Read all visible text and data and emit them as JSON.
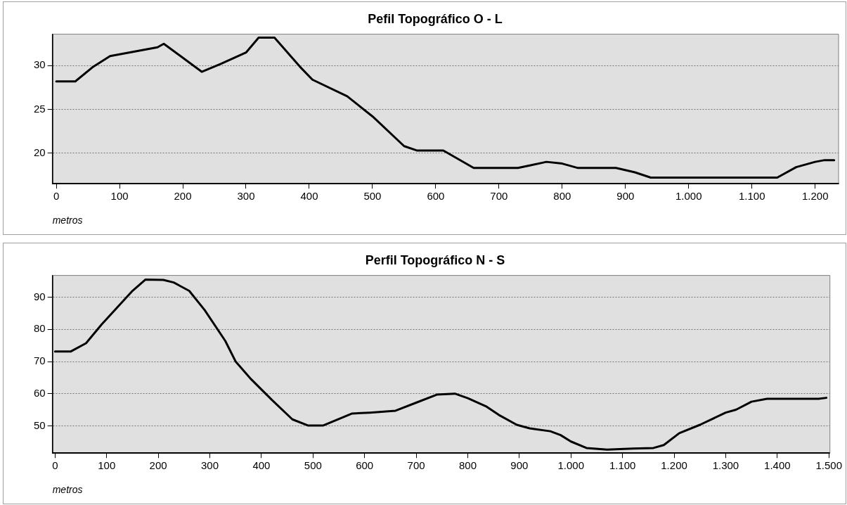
{
  "chart_data": [
    {
      "type": "line",
      "title": "Pefil Topográfico O - L",
      "xlabel": "metros",
      "grid": "y",
      "legend": false,
      "marker": "none",
      "line_style": "solid",
      "xlim": [
        -6,
        1237
      ],
      "ylim": [
        16.5,
        33.6
      ],
      "xticks": [
        0,
        100,
        200,
        300,
        400,
        500,
        600,
        700,
        800,
        900,
        {
          "value": 1000,
          "label": "1.000"
        },
        {
          "value": 1100,
          "label": "1.100"
        },
        {
          "value": 1200,
          "label": "1.200"
        }
      ],
      "yticks": [
        20,
        25,
        30
      ],
      "series": [
        {
          "color": "#000000",
          "x": [
            0,
            30,
            57,
            85,
            130,
            160,
            170,
            230,
            260,
            300,
            320,
            345,
            385,
            405,
            460,
            500,
            550,
            570,
            612,
            660,
            730,
            750,
            775,
            800,
            825,
            885,
            915,
            940,
            1140,
            1170,
            1200,
            1215,
            1230
          ],
          "values": [
            28.2,
            28.2,
            29.8,
            31.1,
            31.7,
            32.1,
            32.5,
            29.3,
            30.2,
            31.5,
            33.2,
            33.2,
            29.9,
            28.4,
            26.5,
            24.2,
            20.8,
            20.3,
            20.3,
            18.3,
            18.3,
            18.6,
            19.0,
            18.8,
            18.3,
            18.3,
            17.8,
            17.2,
            17.2,
            18.4,
            19.0,
            19.2,
            19.2
          ]
        }
      ]
    },
    {
      "type": "line",
      "title": "Perfil Topográfico N - S",
      "xlabel": "metros",
      "grid": "y",
      "legend": false,
      "marker": "none",
      "line_style": "solid",
      "xlim": [
        -5,
        1502
      ],
      "ylim": [
        41.5,
        96.8
      ],
      "xticks": [
        0,
        100,
        200,
        300,
        400,
        500,
        600,
        700,
        800,
        900,
        {
          "value": 1000,
          "label": "1.000"
        },
        {
          "value": 1100,
          "label": "1.100"
        },
        {
          "value": 1200,
          "label": "1.200"
        },
        {
          "value": 1300,
          "label": "1.300"
        },
        {
          "value": 1400,
          "label": "1.400"
        },
        {
          "value": 1500,
          "label": "1.500"
        }
      ],
      "yticks": [
        50,
        60,
        70,
        80,
        90
      ],
      "series": [
        {
          "color": "#000000",
          "x": [
            0,
            30,
            60,
            90,
            150,
            175,
            210,
            230,
            260,
            290,
            330,
            350,
            380,
            420,
            460,
            490,
            520,
            575,
            610,
            660,
            700,
            740,
            775,
            800,
            835,
            860,
            895,
            920,
            960,
            980,
            1000,
            1030,
            1070,
            1120,
            1160,
            1180,
            1210,
            1250,
            1300,
            1320,
            1350,
            1380,
            1480,
            1495
          ],
          "values": [
            73.1,
            73.1,
            75.7,
            81.5,
            92,
            95.5,
            95.4,
            94.6,
            92,
            86,
            76.4,
            70,
            64.5,
            58.1,
            52,
            50.1,
            50.1,
            53.8,
            54.1,
            54.7,
            57.2,
            59.7,
            60,
            58.6,
            56.1,
            53.4,
            50.3,
            49.2,
            48.3,
            47.1,
            45.1,
            43.1,
            42.6,
            42.9,
            43.1,
            44,
            47.7,
            50.3,
            54.1,
            55,
            57.5,
            58.4,
            58.4,
            58.7
          ]
        }
      ]
    }
  ]
}
